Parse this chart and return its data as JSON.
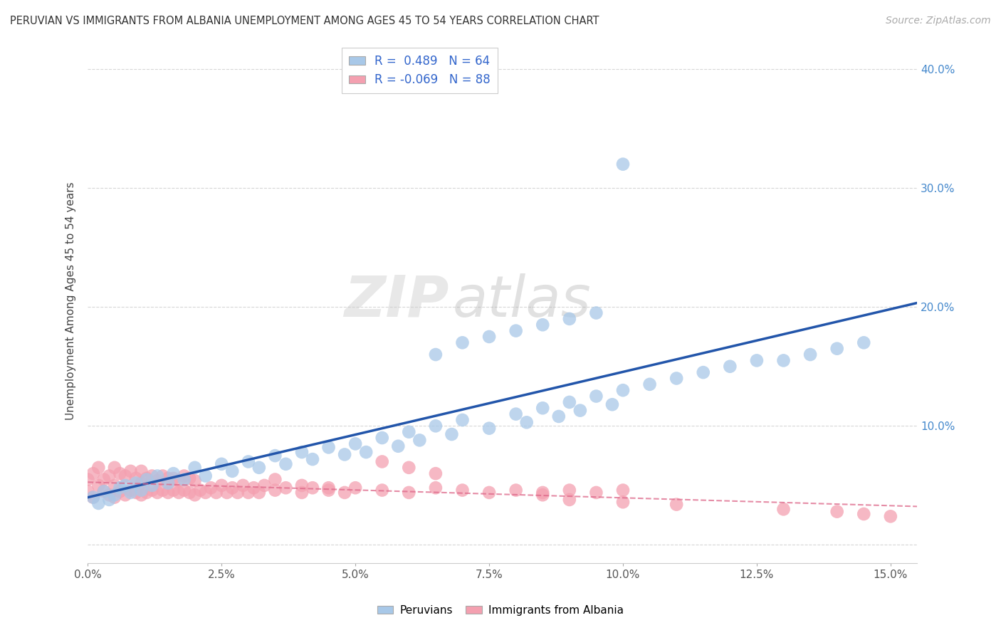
{
  "title": "PERUVIAN VS IMMIGRANTS FROM ALBANIA UNEMPLOYMENT AMONG AGES 45 TO 54 YEARS CORRELATION CHART",
  "source": "Source: ZipAtlas.com",
  "ylabel": "Unemployment Among Ages 45 to 54 years",
  "xlim": [
    0.0,
    0.155
  ],
  "ylim": [
    -0.015,
    0.425
  ],
  "xticks": [
    0.0,
    0.025,
    0.05,
    0.075,
    0.1,
    0.125,
    0.15
  ],
  "xticklabels": [
    "0.0%",
    "2.5%",
    "5.0%",
    "7.5%",
    "10.0%",
    "12.5%",
    "15.0%"
  ],
  "yticks": [
    0.0,
    0.1,
    0.2,
    0.3,
    0.4
  ],
  "yticklabels_right": [
    "",
    "10.0%",
    "20.0%",
    "30.0%",
    "40.0%"
  ],
  "legend_line1": "R =  0.489   N = 64",
  "legend_line2": "R = -0.069   N = 88",
  "color_peru": "#a8c8e8",
  "color_albania": "#f4a0b0",
  "color_trend_peru": "#2255aa",
  "color_trend_albania": "#dd6688",
  "watermark_text": "ZIPatlas",
  "peru_x": [
    0.001,
    0.002,
    0.003,
    0.004,
    0.005,
    0.006,
    0.007,
    0.008,
    0.009,
    0.01,
    0.011,
    0.012,
    0.013,
    0.015,
    0.016,
    0.018,
    0.02,
    0.022,
    0.025,
    0.027,
    0.03,
    0.032,
    0.035,
    0.037,
    0.04,
    0.042,
    0.045,
    0.048,
    0.05,
    0.052,
    0.055,
    0.058,
    0.06,
    0.062,
    0.065,
    0.068,
    0.07,
    0.075,
    0.08,
    0.082,
    0.085,
    0.088,
    0.09,
    0.092,
    0.095,
    0.098,
    0.1,
    0.105,
    0.11,
    0.115,
    0.12,
    0.125,
    0.13,
    0.135,
    0.14,
    0.145,
    0.065,
    0.07,
    0.075,
    0.08,
    0.085,
    0.09,
    0.095,
    0.1
  ],
  "peru_y": [
    0.04,
    0.035,
    0.045,
    0.038,
    0.042,
    0.048,
    0.05,
    0.044,
    0.052,
    0.046,
    0.055,
    0.05,
    0.058,
    0.052,
    0.06,
    0.055,
    0.065,
    0.058,
    0.068,
    0.062,
    0.07,
    0.065,
    0.075,
    0.068,
    0.078,
    0.072,
    0.082,
    0.076,
    0.085,
    0.078,
    0.09,
    0.083,
    0.095,
    0.088,
    0.1,
    0.093,
    0.105,
    0.098,
    0.11,
    0.103,
    0.115,
    0.108,
    0.12,
    0.113,
    0.125,
    0.118,
    0.13,
    0.135,
    0.14,
    0.145,
    0.15,
    0.155,
    0.155,
    0.16,
    0.165,
    0.17,
    0.16,
    0.17,
    0.175,
    0.18,
    0.185,
    0.19,
    0.195,
    0.32
  ],
  "albania_x": [
    0.0,
    0.0,
    0.001,
    0.001,
    0.002,
    0.002,
    0.003,
    0.003,
    0.004,
    0.004,
    0.005,
    0.005,
    0.005,
    0.006,
    0.006,
    0.007,
    0.007,
    0.008,
    0.008,
    0.009,
    0.009,
    0.01,
    0.01,
    0.01,
    0.011,
    0.011,
    0.012,
    0.012,
    0.013,
    0.013,
    0.014,
    0.014,
    0.015,
    0.015,
    0.016,
    0.016,
    0.017,
    0.017,
    0.018,
    0.018,
    0.019,
    0.019,
    0.02,
    0.02,
    0.021,
    0.022,
    0.023,
    0.024,
    0.025,
    0.026,
    0.027,
    0.028,
    0.029,
    0.03,
    0.031,
    0.032,
    0.033,
    0.035,
    0.037,
    0.04,
    0.042,
    0.045,
    0.048,
    0.05,
    0.055,
    0.06,
    0.065,
    0.07,
    0.075,
    0.08,
    0.085,
    0.09,
    0.095,
    0.1,
    0.055,
    0.06,
    0.065,
    0.035,
    0.04,
    0.045,
    0.085,
    0.09,
    0.1,
    0.11,
    0.13,
    0.14,
    0.145,
    0.15
  ],
  "albania_y": [
    0.045,
    0.055,
    0.04,
    0.06,
    0.05,
    0.065,
    0.045,
    0.055,
    0.042,
    0.058,
    0.04,
    0.05,
    0.065,
    0.045,
    0.06,
    0.042,
    0.058,
    0.046,
    0.062,
    0.044,
    0.056,
    0.042,
    0.052,
    0.062,
    0.044,
    0.056,
    0.046,
    0.058,
    0.044,
    0.054,
    0.046,
    0.058,
    0.044,
    0.056,
    0.046,
    0.056,
    0.044,
    0.054,
    0.046,
    0.058,
    0.044,
    0.056,
    0.042,
    0.054,
    0.046,
    0.044,
    0.048,
    0.044,
    0.05,
    0.044,
    0.048,
    0.044,
    0.05,
    0.044,
    0.048,
    0.044,
    0.05,
    0.046,
    0.048,
    0.044,
    0.048,
    0.046,
    0.044,
    0.048,
    0.046,
    0.044,
    0.048,
    0.046,
    0.044,
    0.046,
    0.044,
    0.046,
    0.044,
    0.046,
    0.07,
    0.065,
    0.06,
    0.055,
    0.05,
    0.048,
    0.042,
    0.038,
    0.036,
    0.034,
    0.03,
    0.028,
    0.026,
    0.024
  ]
}
